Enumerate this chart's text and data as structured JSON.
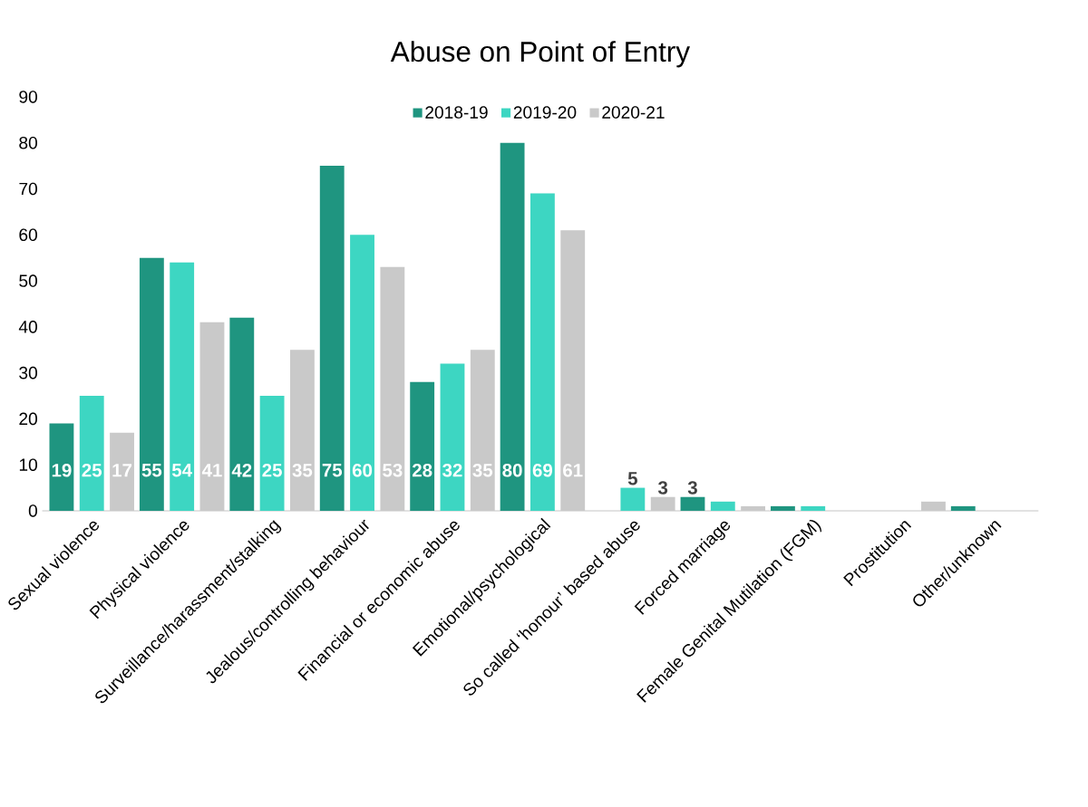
{
  "chart_data": {
    "type": "bar",
    "title": "Abuse on Point of Entry",
    "categories": [
      "Sexual violence",
      "Physical violence",
      "Surveillance/harassment/stalking",
      "Jealous/controlling behaviour",
      "Financial or economic abuse",
      "Emotional/psychological",
      "So called ‘honour’ based abuse",
      "Forced marriage",
      "Female Genital Mutilation (FGM)",
      "Prostitution",
      "Other/unknown"
    ],
    "series": [
      {
        "name": "2018-19",
        "color": "#1f9580",
        "values": [
          19,
          55,
          42,
          75,
          28,
          80,
          0,
          3,
          1,
          0,
          1
        ],
        "value_labels": [
          "19",
          "55",
          "42",
          "75",
          "28",
          "80",
          null,
          "3",
          null,
          null,
          null
        ]
      },
      {
        "name": "2019-20",
        "color": "#3dd6c2",
        "values": [
          25,
          54,
          25,
          60,
          32,
          69,
          5,
          2,
          1,
          0,
          0
        ],
        "value_labels": [
          "25",
          "54",
          "25",
          "60",
          "32",
          "69",
          "5",
          null,
          null,
          null,
          null
        ]
      },
      {
        "name": "2020-21",
        "color": "#c9c9c9",
        "values": [
          17,
          41,
          35,
          53,
          35,
          61,
          3,
          1,
          0,
          2,
          0
        ],
        "value_labels": [
          "17",
          "41",
          "35",
          "53",
          "35",
          "61",
          "3",
          null,
          null,
          null,
          null
        ]
      }
    ],
    "ylim": [
      0,
      90
    ],
    "yticks": [
      0,
      10,
      20,
      30,
      40,
      50,
      60,
      70,
      80,
      90
    ],
    "grid": false,
    "legend": "top"
  }
}
